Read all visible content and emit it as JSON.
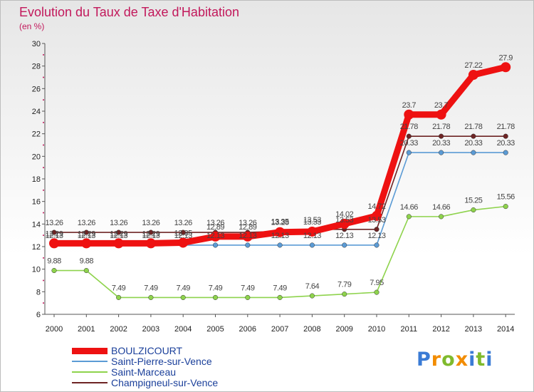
{
  "header": {
    "title": "Evolution du Taux de Taxe d'Habitation",
    "subtitle": "(en %)"
  },
  "logo": {
    "letters": [
      "P",
      "r",
      "o",
      "x",
      "i",
      "t",
      "i"
    ],
    "colors": [
      "#3a7bd5",
      "#f28c00",
      "#7fba2d",
      "#f28c00",
      "#3a7bd5",
      "#7fba2d",
      "#3a7bd5"
    ]
  },
  "chart_data": {
    "type": "line",
    "title": "Evolution du Taux de Taxe d'Habitation",
    "subtitle": "(en %)",
    "xlabel": "",
    "ylabel": "",
    "x": [
      "2000",
      "2001",
      "2002",
      "2003",
      "2004",
      "2005",
      "2006",
      "2007",
      "2008",
      "2009",
      "2010",
      "2011",
      "2012",
      "2013",
      "2014"
    ],
    "ylim": [
      6,
      30
    ],
    "yticks": [
      6,
      8,
      10,
      12,
      14,
      16,
      18,
      20,
      22,
      24,
      26,
      28,
      30
    ],
    "grid": false,
    "legend_position": "bottom-left",
    "series": [
      {
        "name": "Champigneul-sur-Vence",
        "color": "#6e2424",
        "values": [
          13.26,
          13.26,
          13.26,
          13.26,
          13.26,
          13.26,
          13.26,
          13.35,
          13.53,
          13.53,
          13.53,
          21.78,
          21.78,
          21.78,
          21.78
        ],
        "labels": [
          "13.26",
          "13.26",
          "13.26",
          "13.26",
          "13.26",
          "13.26",
          "13.26",
          "13.35",
          "13.53",
          "13.53",
          "13.53",
          "21.78",
          "21.78",
          "21.78",
          "21.78"
        ]
      },
      {
        "name": "Saint-Pierre-sur-Vence",
        "color": "#5b9bd5",
        "values": [
          12.13,
          12.13,
          12.13,
          12.13,
          12.13,
          12.13,
          12.13,
          12.13,
          12.13,
          12.13,
          12.13,
          20.33,
          20.33,
          20.33,
          20.33
        ],
        "labels": [
          "12.13",
          "12.13",
          "12.13",
          "12.13",
          "12.13",
          "12.13",
          "12.13",
          "12.13",
          "12.13",
          "12.13",
          "12.13",
          "20.33",
          "20.33",
          "20.33",
          "20.33"
        ]
      },
      {
        "name": "Saint-Marceau",
        "color": "#8ed34c",
        "values": [
          9.88,
          9.88,
          7.49,
          7.49,
          7.49,
          7.49,
          7.49,
          7.49,
          7.64,
          7.79,
          7.95,
          14.66,
          14.66,
          15.25,
          15.56
        ],
        "labels": [
          "9.88",
          "9.88",
          "7.49",
          "7.49",
          "7.49",
          "7.49",
          "7.49",
          "7.49",
          "7.64",
          "7.79",
          "7.95",
          "14.66",
          "14.66",
          "15.25",
          "15.56"
        ]
      },
      {
        "name": "BOULZICOURT",
        "color": "#ee1111",
        "values": [
          12.29,
          12.29,
          12.29,
          12.29,
          12.35,
          12.89,
          12.89,
          13.28,
          13.33,
          14.02,
          14.72,
          23.7,
          23.7,
          27.22,
          27.9
        ],
        "labels": [
          "12.29",
          "12.29",
          "12.29",
          "12.29",
          "12.35",
          "12.89",
          "12.89",
          "13.28",
          "13.33",
          "14.02",
          "14.72",
          "23.7",
          "23.7",
          "27.22",
          "27.9"
        ]
      }
    ],
    "legend_order": [
      "BOULZICOURT",
      "Saint-Pierre-sur-Vence",
      "Saint-Marceau",
      "Champigneul-sur-Vence"
    ]
  }
}
